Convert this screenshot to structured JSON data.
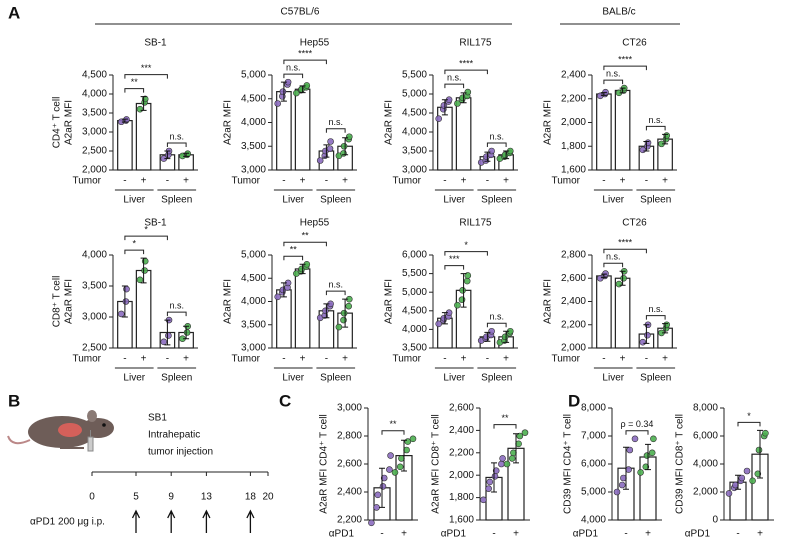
{
  "panel_labels": [
    "A",
    "B",
    "C",
    "D"
  ],
  "strain_headers": [
    "C57BL/6",
    "BALB/c"
  ],
  "chart_data": [
    {
      "type": "bar",
      "title": "SB-1",
      "ylabel": [
        "CD4⁺ T cell",
        "A2aR MFI"
      ],
      "ylim": [
        2000,
        4500
      ],
      "yticks": [
        {
          "value": 2000,
          "label": "2,000"
        },
        {
          "value": 2500,
          "label": "2,500"
        },
        {
          "value": 3000,
          "label": "3,000"
        },
        {
          "value": 3500,
          "label": "3,500"
        },
        {
          "value": 4000,
          "label": "4,000"
        },
        {
          "value": 4500,
          "label": "4,500"
        }
      ],
      "categories": [
        "-",
        "+",
        "-",
        "+"
      ],
      "groups": [
        "Liver",
        "Spleen"
      ],
      "x_title": "Tumor",
      "values": [
        3300,
        3750,
        2400,
        2400
      ],
      "errors": [
        40,
        180,
        100,
        40
      ],
      "points": [
        [
          3270,
          3300,
          3330
        ],
        [
          3600,
          3780,
          3870
        ],
        [
          2300,
          2400,
          2500
        ],
        [
          2370,
          2400,
          2430
        ]
      ],
      "point_colors": [
        "#8b6bbf",
        "#4caf50",
        "#8b6bbf",
        "#4caf50"
      ],
      "brackets": [
        {
          "label": "**",
          "span": [
            0,
            1
          ]
        },
        {
          "label": "***",
          "span": [
            0,
            2
          ]
        },
        {
          "label": "n.s.",
          "span": [
            2,
            3
          ]
        }
      ]
    },
    {
      "type": "bar",
      "title": "Hep55",
      "ylabel": [
        "A2aR MFI"
      ],
      "ylim": [
        3000,
        5000
      ],
      "yticks": [
        {
          "value": 3000,
          "label": "3,000"
        },
        {
          "value": 3500,
          "label": "3,500"
        },
        {
          "value": 4000,
          "label": "4,000"
        },
        {
          "value": 4500,
          "label": "4,500"
        },
        {
          "value": 5000,
          "label": "5,000"
        }
      ],
      "categories": [
        "-",
        "+",
        "-",
        "+"
      ],
      "groups": [
        "Liver",
        "Spleen"
      ],
      "x_title": "Tumor",
      "values": [
        4650,
        4700,
        3400,
        3500
      ],
      "errors": [
        200,
        70,
        130,
        180
      ],
      "points": [
        [
          4400,
          4550,
          4650,
          4800,
          4850
        ],
        [
          4620,
          4680,
          4700,
          4740,
          4780
        ],
        [
          3200,
          3300,
          3400,
          3450,
          3600
        ],
        [
          3300,
          3350,
          3500,
          3650,
          3700
        ]
      ],
      "point_colors": [
        "#8b6bbf",
        "#4caf50",
        "#8b6bbf",
        "#4caf50"
      ],
      "brackets": [
        {
          "label": "n.s.",
          "span": [
            0,
            1
          ]
        },
        {
          "label": "****",
          "span": [
            0,
            2
          ]
        },
        {
          "label": "n.s.",
          "span": [
            2,
            3
          ]
        }
      ]
    },
    {
      "type": "bar",
      "title": "RIL175",
      "ylabel": [
        "A2aR MFI"
      ],
      "ylim": [
        3000,
        5500
      ],
      "yticks": [
        {
          "value": 3000,
          "label": "3,000"
        },
        {
          "value": 3500,
          "label": "3,500"
        },
        {
          "value": 4000,
          "label": "4,000"
        },
        {
          "value": 4500,
          "label": "4,500"
        },
        {
          "value": 5000,
          "label": "5,000"
        },
        {
          "value": 5500,
          "label": "5,500"
        }
      ],
      "categories": [
        "-",
        "+",
        "-",
        "+"
      ],
      "groups": [
        "Liver",
        "Spleen"
      ],
      "x_title": "Tumor",
      "values": [
        4650,
        4900,
        3350,
        3400
      ],
      "errors": [
        200,
        130,
        120,
        100
      ],
      "points": [
        [
          4350,
          4600,
          4700,
          4800,
          4850
        ],
        [
          4750,
          4850,
          4900,
          4950,
          5050
        ],
        [
          3200,
          3250,
          3350,
          3400,
          3500
        ],
        [
          3300,
          3350,
          3400,
          3450,
          3500
        ]
      ],
      "point_colors": [
        "#8b6bbf",
        "#4caf50",
        "#8b6bbf",
        "#4caf50"
      ],
      "brackets": [
        {
          "label": "n.s.",
          "span": [
            0,
            1
          ]
        },
        {
          "label": "****",
          "span": [
            0,
            2
          ]
        },
        {
          "label": "n.s.",
          "span": [
            2,
            3
          ]
        }
      ]
    },
    {
      "type": "bar",
      "title": "CT26",
      "ylabel": [
        "A2aR MFI"
      ],
      "ylim": [
        1600,
        2400
      ],
      "yticks": [
        {
          "value": 1600,
          "label": "1,600"
        },
        {
          "value": 1800,
          "label": "1,800"
        },
        {
          "value": 2000,
          "label": "2,000"
        },
        {
          "value": 2200,
          "label": "2,200"
        },
        {
          "value": 2400,
          "label": "2,400"
        }
      ],
      "categories": [
        "-",
        "+",
        "-",
        "+"
      ],
      "groups": [
        "Liver",
        "Spleen"
      ],
      "x_title": "Tumor",
      "values": [
        2240,
        2270,
        1800,
        1860
      ],
      "errors": [
        12,
        20,
        40,
        40
      ],
      "points": [
        [
          2225,
          2240,
          2255
        ],
        [
          2250,
          2270,
          2290
        ],
        [
          1770,
          1800,
          1830
        ],
        [
          1820,
          1860,
          1890
        ]
      ],
      "point_colors": [
        "#8b6bbf",
        "#4caf50",
        "#8b6bbf",
        "#4caf50"
      ],
      "brackets": [
        {
          "label": "n.s.",
          "span": [
            0,
            1
          ]
        },
        {
          "label": "****",
          "span": [
            0,
            2
          ]
        },
        {
          "label": "n.s.",
          "span": [
            2,
            3
          ]
        }
      ]
    },
    {
      "type": "bar",
      "title": "SB-1",
      "ylabel": [
        "CD8⁺ T cell",
        "A2aR MFI"
      ],
      "ylim": [
        2500,
        4000
      ],
      "yticks": [
        {
          "value": 2500,
          "label": "2,500"
        },
        {
          "value": 3000,
          "label": "3,000"
        },
        {
          "value": 3500,
          "label": "3,500"
        },
        {
          "value": 4000,
          "label": "4,000"
        }
      ],
      "categories": [
        "-",
        "+",
        "-",
        "+"
      ],
      "groups": [
        "Liver",
        "Spleen"
      ],
      "x_title": "Tumor",
      "values": [
        3250,
        3750,
        2750,
        2750
      ],
      "errors": [
        250,
        200,
        200,
        100
      ],
      "points": [
        [
          3050,
          3250,
          3450
        ],
        [
          3600,
          3750,
          3900
        ],
        [
          2600,
          2700,
          2950
        ],
        [
          2650,
          2750,
          2850
        ]
      ],
      "point_colors": [
        "#8b6bbf",
        "#4caf50",
        "#8b6bbf",
        "#4caf50"
      ],
      "brackets": [
        {
          "label": "*",
          "span": [
            0,
            1
          ]
        },
        {
          "label": "*",
          "span": [
            0,
            2
          ]
        },
        {
          "label": "n.s.",
          "span": [
            2,
            3
          ]
        }
      ]
    },
    {
      "type": "bar",
      "title": "Hep55",
      "ylabel": [
        "A2aR MFI"
      ],
      "ylim": [
        3000,
        5000
      ],
      "yticks": [
        {
          "value": 3000,
          "label": "3,000"
        },
        {
          "value": 3500,
          "label": "3,500"
        },
        {
          "value": 4000,
          "label": "4,000"
        },
        {
          "value": 4500,
          "label": "4,500"
        },
        {
          "value": 5000,
          "label": "5,000"
        }
      ],
      "categories": [
        "-",
        "+",
        "-",
        "+"
      ],
      "groups": [
        "Liver",
        "Spleen"
      ],
      "x_title": "Tumor",
      "values": [
        4250,
        4700,
        3800,
        3750
      ],
      "errors": [
        150,
        100,
        150,
        300
      ],
      "points": [
        [
          4100,
          4200,
          4250,
          4300,
          4400
        ],
        [
          4600,
          4650,
          4700,
          4750,
          4800
        ],
        [
          3650,
          3700,
          3800,
          3900,
          3950
        ],
        [
          3450,
          3600,
          3750,
          3900,
          4050
        ]
      ],
      "point_colors": [
        "#8b6bbf",
        "#4caf50",
        "#8b6bbf",
        "#4caf50"
      ],
      "brackets": [
        {
          "label": "**",
          "span": [
            0,
            1
          ]
        },
        {
          "label": "**",
          "span": [
            0,
            2
          ]
        },
        {
          "label": "n.s.",
          "span": [
            2,
            3
          ]
        }
      ]
    },
    {
      "type": "bar",
      "title": "RIL175",
      "ylabel": [
        "A2aR MFI"
      ],
      "ylim": [
        3500,
        6000
      ],
      "yticks": [
        {
          "value": 3500,
          "label": "3,500"
        },
        {
          "value": 4000,
          "label": "4,000"
        },
        {
          "value": 4500,
          "label": "4,500"
        },
        {
          "value": 5000,
          "label": "5,000"
        },
        {
          "value": 5500,
          "label": "5,500"
        },
        {
          "value": 6000,
          "label": "6,000"
        }
      ],
      "categories": [
        "-",
        "+",
        "-",
        "+"
      ],
      "groups": [
        "Liver",
        "Spleen"
      ],
      "x_title": "Tumor",
      "values": [
        4300,
        5050,
        3800,
        3800
      ],
      "errors": [
        150,
        450,
        120,
        150
      ],
      "points": [
        [
          4150,
          4250,
          4300,
          4350,
          4450
        ],
        [
          4650,
          4800,
          5050,
          5300,
          5450
        ],
        [
          3700,
          3750,
          3800,
          3850,
          3950
        ],
        [
          3650,
          3700,
          3800,
          3900,
          3950
        ]
      ],
      "point_colors": [
        "#8b6bbf",
        "#4caf50",
        "#8b6bbf",
        "#4caf50"
      ],
      "brackets": [
        {
          "label": "***",
          "span": [
            0,
            1
          ]
        },
        {
          "label": "*",
          "span": [
            0,
            2
          ]
        },
        {
          "label": "n.s.",
          "span": [
            2,
            3
          ]
        }
      ]
    },
    {
      "type": "bar",
      "title": "CT26",
      "ylabel": [
        "A2aR MFI"
      ],
      "ylim": [
        2000,
        2800
      ],
      "yticks": [
        {
          "value": 2000,
          "label": "2,000"
        },
        {
          "value": 2200,
          "label": "2,200"
        },
        {
          "value": 2400,
          "label": "2,400"
        },
        {
          "value": 2600,
          "label": "2,600"
        },
        {
          "value": 2800,
          "label": "2,800"
        }
      ],
      "categories": [
        "-",
        "+",
        "-",
        "+"
      ],
      "groups": [
        "Liver",
        "Spleen"
      ],
      "x_title": "Tumor",
      "values": [
        2620,
        2600,
        2120,
        2170
      ],
      "errors": [
        15,
        60,
        80,
        40
      ],
      "points": [
        [
          2600,
          2620,
          2640
        ],
        [
          2550,
          2600,
          2660
        ],
        [
          2050,
          2110,
          2200
        ],
        [
          2130,
          2170,
          2200
        ]
      ],
      "point_colors": [
        "#8b6bbf",
        "#4caf50",
        "#8b6bbf",
        "#4caf50"
      ],
      "brackets": [
        {
          "label": "n.s.",
          "span": [
            0,
            1
          ]
        },
        {
          "label": "****",
          "span": [
            0,
            2
          ]
        },
        {
          "label": "n.s.",
          "span": [
            2,
            3
          ]
        }
      ]
    },
    {
      "type": "bar",
      "ylabel": [
        "A2aR MFI CD4⁺ T cell"
      ],
      "ylim": [
        2200,
        3000
      ],
      "yticks": [
        {
          "value": 2200,
          "label": "2,200"
        },
        {
          "value": 2400,
          "label": "2,400"
        },
        {
          "value": 2600,
          "label": "2,600"
        },
        {
          "value": 2800,
          "label": "2,800"
        },
        {
          "value": 3000,
          "label": "3,000"
        }
      ],
      "categories": [
        "-",
        "+"
      ],
      "x_title": "αPD1",
      "values": [
        2430,
        2660
      ],
      "errors": [
        140,
        110
      ],
      "points": [
        [
          2180,
          2290,
          2380,
          2440,
          2500,
          2560,
          2660
        ],
        [
          2540,
          2580,
          2640,
          2700,
          2760,
          2780
        ]
      ],
      "point_colors": [
        "#8b6bbf",
        "#4caf50"
      ],
      "brackets": [
        {
          "label": "**",
          "span": [
            0,
            1
          ]
        }
      ]
    },
    {
      "type": "bar",
      "ylabel": [
        "A2aR MFI CD8⁺ T cell"
      ],
      "ylim": [
        1600,
        2600
      ],
      "yticks": [
        {
          "value": 1600,
          "label": "1,600"
        },
        {
          "value": 1800,
          "label": "1,800"
        },
        {
          "value": 2000,
          "label": "2,000"
        },
        {
          "value": 2200,
          "label": "2,200"
        },
        {
          "value": 2400,
          "label": "2,400"
        },
        {
          "value": 2600,
          "label": "2,600"
        }
      ],
      "categories": [
        "-",
        "+"
      ],
      "x_title": "αPD1",
      "values": [
        1980,
        2240
      ],
      "errors": [
        130,
        130
      ],
      "points": [
        [
          1780,
          1880,
          1940,
          1990,
          2040,
          2100,
          2150
        ],
        [
          2100,
          2150,
          2200,
          2280,
          2350,
          2380
        ]
      ],
      "point_colors": [
        "#8b6bbf",
        "#4caf50"
      ],
      "brackets": [
        {
          "label": "**",
          "span": [
            0,
            1
          ]
        }
      ]
    },
    {
      "type": "bar",
      "ylabel": [
        "CD39 MFI CD4⁺ T cell"
      ],
      "ylim": [
        4000,
        8000
      ],
      "yticks": [
        {
          "value": 4000,
          "label": "4,000"
        },
        {
          "value": 5000,
          "label": "5,000"
        },
        {
          "value": 6000,
          "label": "6,000"
        },
        {
          "value": 7000,
          "label": "7,000"
        },
        {
          "value": 8000,
          "label": "8,000"
        }
      ],
      "categories": [
        "-",
        "+"
      ],
      "x_title": "αPD1",
      "values": [
        5850,
        6250
      ],
      "errors": [
        750,
        450
      ],
      "points": [
        [
          5000,
          5250,
          5500,
          5800,
          6500,
          6900
        ],
        [
          5700,
          5900,
          6300,
          6400,
          6900
        ]
      ],
      "point_colors": [
        "#8b6bbf",
        "#4caf50"
      ],
      "brackets": [
        {
          "label": "ρ = 0.34",
          "span": [
            0,
            1
          ]
        }
      ]
    },
    {
      "type": "bar",
      "ylabel": [
        "CD39 MFI CD8⁺ T cell"
      ],
      "ylim": [
        0,
        8000
      ],
      "yticks": [
        0,
        {
          "value": 2000,
          "label": "2,000"
        },
        {
          "value": 4000,
          "label": "4,000"
        },
        {
          "value": 6000,
          "label": "6,000"
        },
        {
          "value": 8000,
          "label": "8,000"
        }
      ],
      "categories": [
        "-",
        "+"
      ],
      "x_title": "αPD1",
      "values": [
        2700,
        4700
      ],
      "errors": [
        500,
        1700
      ],
      "points": [
        [
          1900,
          2300,
          2500,
          2800,
          3000,
          3500
        ],
        [
          2800,
          3300,
          5000,
          6000,
          6200
        ]
      ],
      "point_colors": [
        "#8b6bbf",
        "#4caf50"
      ],
      "brackets": [
        {
          "label": "*",
          "span": [
            0,
            1
          ]
        }
      ]
    }
  ],
  "panel_b": {
    "texts": [
      "SB1",
      "Intrahepatic",
      "tumor injection"
    ],
    "timeline": {
      "xlim": [
        0,
        20
      ],
      "xticks": [
        0,
        5,
        9,
        13,
        18,
        20
      ],
      "doses": [
        5,
        9,
        13,
        18
      ],
      "dose_label": "αPD1 200 μg i.p."
    }
  }
}
